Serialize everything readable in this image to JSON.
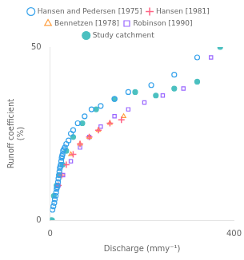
{
  "chart_data": {
    "type": "scatter",
    "xlabel": "Discharge (mmy⁻¹)",
    "ylabel": "Runoff coefficient\n(%)",
    "xlim": [
      0,
      400
    ],
    "ylim": [
      0,
      50
    ],
    "xticks": [
      0,
      400
    ],
    "yticks": [
      0,
      50
    ],
    "grid": false,
    "legend": "top",
    "series": [
      {
        "name": "Hansen and Pedersen [1975]",
        "marker": "circle_open",
        "x": [
          5,
          7,
          9,
          10,
          12,
          13,
          14,
          15,
          16,
          17,
          18,
          19,
          20,
          21,
          22,
          23,
          24,
          25,
          26,
          27,
          28,
          30,
          32,
          35,
          40,
          45,
          50,
          60,
          75,
          90,
          110,
          140,
          170,
          220,
          270,
          320
        ],
        "values": [
          3,
          4,
          5,
          6,
          7,
          8,
          9,
          9.5,
          10,
          11,
          12,
          13,
          14,
          15,
          15.5,
          16,
          17,
          18,
          18.5,
          19,
          20,
          20.5,
          21,
          22,
          23,
          25,
          26,
          28,
          30,
          32,
          33,
          35,
          37,
          39,
          42,
          47
        ]
      },
      {
        "name": "Hansen [1981]",
        "marker": "plus",
        "x": [
          18,
          25,
          35,
          50,
          65,
          85,
          105,
          130,
          155
        ],
        "values": [
          10,
          13,
          16,
          19,
          22,
          24,
          26,
          28,
          29
        ]
      },
      {
        "name": "Bennetzen [1978]",
        "marker": "triangle_open",
        "x": [
          45,
          65,
          85,
          105,
          130,
          160
        ],
        "values": [
          19,
          22,
          24,
          26,
          28,
          30
        ]
      },
      {
        "name": "Robinson [1990]",
        "marker": "square_open",
        "x": [
          18,
          28,
          45,
          65,
          85,
          110,
          140,
          170,
          205,
          245,
          290,
          350
        ],
        "values": [
          10,
          13,
          17,
          21,
          24,
          27,
          30,
          32,
          34,
          36,
          38,
          47
        ]
      },
      {
        "name": "Study catchment",
        "marker": "circle_filled",
        "x": [
          2,
          4,
          8,
          14,
          20,
          27,
          35,
          50,
          70,
          100,
          140,
          185,
          230,
          270,
          320,
          370
        ],
        "values": [
          0,
          0,
          7,
          10,
          13,
          16,
          20,
          24,
          28,
          32,
          35,
          37,
          36,
          38,
          40,
          50
        ]
      }
    ]
  }
}
